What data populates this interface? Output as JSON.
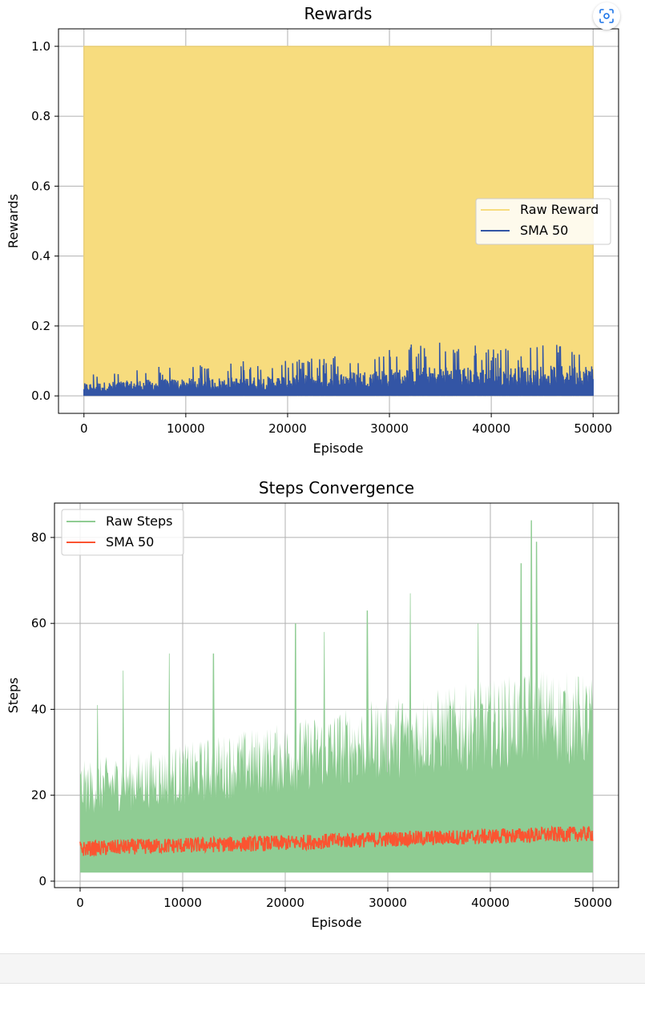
{
  "colors": {
    "raw_reward": "#f7dc7e",
    "raw_reward_line": "#ead07a",
    "sma_reward": "#3355a5",
    "raw_steps": "#8fcc93",
    "sma_steps": "#fb5431",
    "grid": "#b0b0b0"
  },
  "toolbar": {
    "expand_icon": "screenshot-scan-icon"
  },
  "chart_data": [
    {
      "type": "line",
      "title": "Rewards",
      "xlabel": "Episode",
      "ylabel": "Rewards",
      "xlim": [
        -2500,
        52500
      ],
      "ylim": [
        -0.05,
        1.05
      ],
      "xticks": [
        0,
        10000,
        20000,
        30000,
        40000,
        50000
      ],
      "yticks": [
        0.0,
        0.2,
        0.4,
        0.6,
        0.8,
        1.0
      ],
      "xtick_labels": [
        "0",
        "10000",
        "20000",
        "30000",
        "40000",
        "50000"
      ],
      "ytick_labels": [
        "0.0",
        "0.2",
        "0.4",
        "0.6",
        "0.8",
        "1.0"
      ],
      "grid": true,
      "legend_position": "center-right",
      "series": [
        {
          "name": "Raw Reward",
          "style": "filled-band",
          "x_range": [
            0,
            50000
          ],
          "values": [
            0.0,
            1.0
          ]
        },
        {
          "name": "SMA 50",
          "style": "noisy-line",
          "x": [
            0,
            5000,
            10000,
            15000,
            20000,
            25000,
            30000,
            35000,
            40000,
            45000,
            50000
          ],
          "peak": [
            0.06,
            0.08,
            0.09,
            0.1,
            0.1,
            0.12,
            0.14,
            0.16,
            0.14,
            0.15,
            0.16
          ],
          "mean": [
            0.02,
            0.025,
            0.028,
            0.03,
            0.032,
            0.038,
            0.043,
            0.047,
            0.045,
            0.048,
            0.05
          ]
        }
      ]
    },
    {
      "type": "line",
      "title": "Steps Convergence",
      "xlabel": "Episode",
      "ylabel": "Steps",
      "xlim": [
        -2500,
        52500
      ],
      "ylim": [
        -1.5,
        88
      ],
      "xticks": [
        0,
        10000,
        20000,
        30000,
        40000,
        50000
      ],
      "yticks": [
        0,
        20,
        40,
        60,
        80
      ],
      "xtick_labels": [
        "0",
        "10000",
        "20000",
        "30000",
        "40000",
        "50000"
      ],
      "ytick_labels": [
        "0",
        "20",
        "40",
        "60",
        "80"
      ],
      "grid": true,
      "legend_position": "top-left",
      "series": [
        {
          "name": "Raw Steps",
          "style": "noisy-band",
          "x": [
            0,
            5000,
            10000,
            15000,
            20000,
            25000,
            30000,
            35000,
            40000,
            45000,
            50000
          ],
          "min": [
            2,
            2,
            2,
            2,
            2,
            2,
            2,
            2,
            2,
            2,
            2
          ],
          "typical_max": [
            28,
            30,
            32,
            35,
            37,
            40,
            43,
            45,
            47,
            50,
            48
          ],
          "spikes": [
            [
              1700,
              41
            ],
            [
              4200,
              49
            ],
            [
              8700,
              53
            ],
            [
              13000,
              53
            ],
            [
              21000,
              60
            ],
            [
              23800,
              58
            ],
            [
              28000,
              63
            ],
            [
              32200,
              67
            ],
            [
              38800,
              60
            ],
            [
              43000,
              74
            ],
            [
              44000,
              84
            ],
            [
              44500,
              79
            ]
          ]
        },
        {
          "name": "SMA 50",
          "style": "noisy-line",
          "x": [
            0,
            5000,
            10000,
            15000,
            20000,
            25000,
            30000,
            35000,
            40000,
            45000,
            50000
          ],
          "values": [
            7.5,
            8.0,
            8.3,
            8.6,
            8.9,
            9.4,
            9.8,
            10.1,
            10.4,
            10.8,
            11.0
          ],
          "jitter": 1.8
        }
      ]
    }
  ]
}
